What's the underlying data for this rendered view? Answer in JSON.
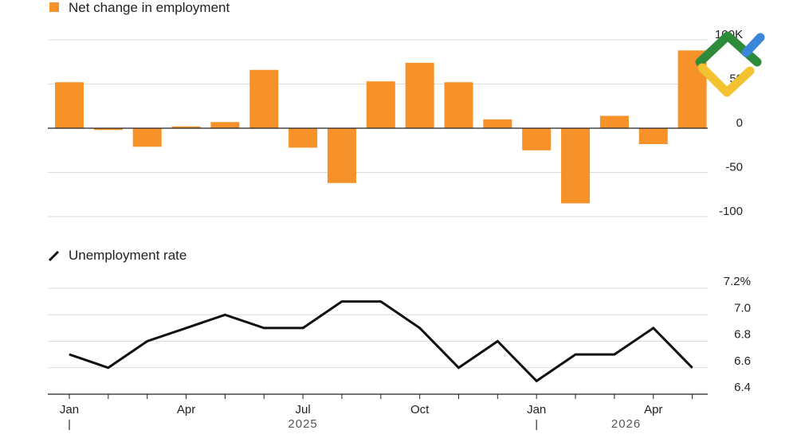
{
  "chart_data": [
    {
      "type": "bar",
      "legend": "Net change in employment",
      "color": "#f7922a",
      "x": [
        "Jan 2025",
        "Feb 2025",
        "Mar 2025",
        "Apr 2025",
        "May 2025",
        "Jun 2025",
        "Jul 2025",
        "Aug 2025",
        "Sep 2025",
        "Oct 2025",
        "Nov 2025",
        "Dec 2025",
        "Jan 2026",
        "Feb 2026",
        "Mar 2026",
        "Apr 2026",
        "May 2026"
      ],
      "values": [
        52,
        -2,
        -21,
        2,
        7,
        66,
        -22,
        -62,
        53,
        74,
        52,
        10,
        -25,
        -85,
        14,
        -18,
        88
      ],
      "ylim": [
        -100,
        100
      ],
      "yticks": [
        100,
        50,
        0,
        -50,
        -100
      ],
      "ytick_labels": [
        "100K",
        "50",
        "0",
        "-50",
        "-100"
      ],
      "grid": true
    },
    {
      "type": "line",
      "legend": "Unemployment rate",
      "color": "#111111",
      "x": [
        "Jan 2025",
        "Feb 2025",
        "Mar 2025",
        "Apr 2025",
        "May 2025",
        "Jun 2025",
        "Jul 2025",
        "Aug 2025",
        "Sep 2025",
        "Oct 2025",
        "Nov 2025",
        "Dec 2025",
        "Jan 2026",
        "Feb 2026",
        "Mar 2026",
        "Apr 2026",
        "May 2026"
      ],
      "values": [
        6.7,
        6.6,
        6.8,
        6.9,
        7.0,
        6.9,
        6.9,
        7.1,
        7.1,
        6.9,
        6.6,
        6.8,
        6.5,
        6.7,
        6.7,
        6.9,
        6.6
      ],
      "ylim": [
        6.4,
        7.2
      ],
      "yticks": [
        7.2,
        7.0,
        6.8,
        6.6,
        6.4
      ],
      "ytick_labels": [
        "7.2%",
        "7.0",
        "6.8",
        "6.6",
        "6.4"
      ],
      "grid": true
    }
  ],
  "x_axis": {
    "tick_labels": [
      {
        "label": "Jan",
        "index": 0
      },
      {
        "label": "Apr",
        "index": 3
      },
      {
        "label": "Jul",
        "index": 6
      },
      {
        "label": "Oct",
        "index": 9
      },
      {
        "label": "Jan",
        "index": 12
      },
      {
        "label": "Apr",
        "index": 15
      }
    ],
    "years": [
      {
        "label": "2025",
        "center_index": 6
      },
      {
        "label": "2026",
        "center_index": 14.3
      }
    ],
    "year_separators": [
      0,
      12
    ]
  },
  "logo": {
    "name": "watermark-logo",
    "colors": [
      "#2e8b3a",
      "#3a86d9",
      "#f2c230"
    ]
  }
}
